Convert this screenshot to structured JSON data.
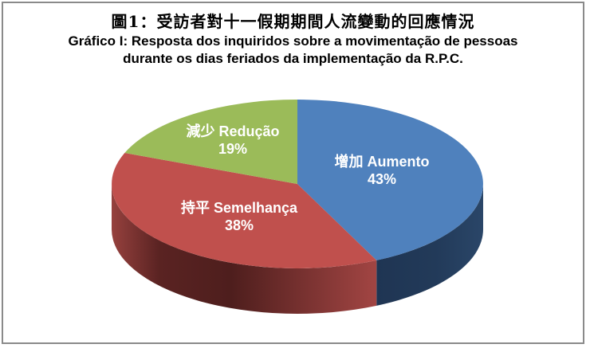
{
  "window": {
    "background": "#FFFFFF",
    "border_color": "#8A8A8A"
  },
  "title": {
    "line1_zh": "圖1：受訪者對十一假期期間人流變動的回應情況",
    "line2_pt": "Gráfico I: Resposta dos inquiridos sobre a movimentação de pessoas",
    "line3_pt": "durante os dias feriados da implementação da R.P.C."
  },
  "chart_data": {
    "type": "pie",
    "effect": "3d",
    "direction": "clockwise",
    "start_angle_deg": 0,
    "legend": "none",
    "data_labels": "category_and_percent",
    "label_text_color": "#FFFFFF",
    "title": "圖1：受訪者對十一假期期間人流變動的回應情況",
    "subtitle": "Gráfico I: Resposta dos inquiridos sobre a movimentação de pessoas durante os dias feriados da implementação da R.P.C.",
    "slices": [
      {
        "label": "增加 Aumento",
        "label_zh": "增加",
        "label_pt": "Aumento",
        "percent": 43,
        "percent_label": "43%",
        "top_color": "#4F81BD",
        "side_color": "#24395B"
      },
      {
        "label": "持平 Semelhança",
        "label_zh": "持平",
        "label_pt": "Semelhança",
        "percent": 38,
        "percent_label": "38%",
        "top_color": "#C0504D",
        "side_color": "#5A2322"
      },
      {
        "label": "減少 Redução",
        "label_zh": "減少",
        "label_pt": "Redução",
        "percent": 19,
        "percent_label": "19%",
        "top_color": "#9BBB59",
        "side_color": null
      }
    ]
  }
}
